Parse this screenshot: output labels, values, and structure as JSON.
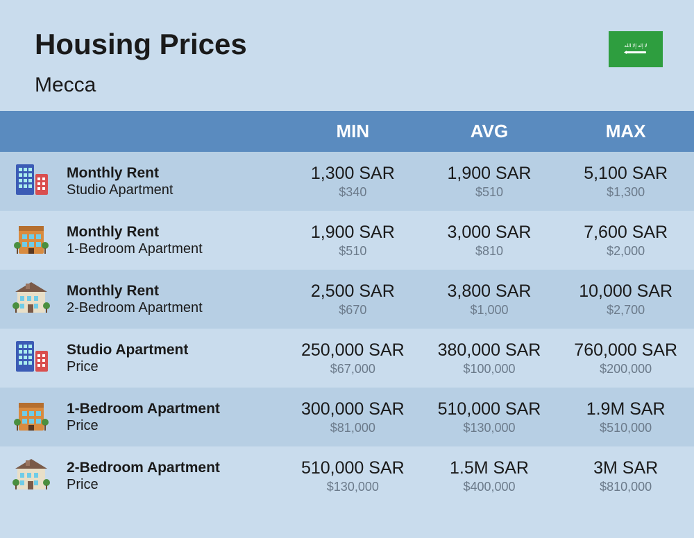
{
  "header": {
    "title": "Housing Prices",
    "subtitle": "Mecca",
    "flag_color": "#2e9e3f"
  },
  "columns": [
    "MIN",
    "AVG",
    "MAX"
  ],
  "rows": [
    {
      "icon": "tower",
      "title": "Monthly Rent",
      "subtitle": "Studio Apartment",
      "min": {
        "main": "1,300 SAR",
        "sub": "$340"
      },
      "avg": {
        "main": "1,900 SAR",
        "sub": "$510"
      },
      "max": {
        "main": "5,100 SAR",
        "sub": "$1,300"
      }
    },
    {
      "icon": "brick",
      "title": "Monthly Rent",
      "subtitle": "1-Bedroom Apartment",
      "min": {
        "main": "1,900 SAR",
        "sub": "$510"
      },
      "avg": {
        "main": "3,000 SAR",
        "sub": "$810"
      },
      "max": {
        "main": "7,600 SAR",
        "sub": "$2,000"
      }
    },
    {
      "icon": "house",
      "title": "Monthly Rent",
      "subtitle": "2-Bedroom Apartment",
      "min": {
        "main": "2,500 SAR",
        "sub": "$670"
      },
      "avg": {
        "main": "3,800 SAR",
        "sub": "$1,000"
      },
      "max": {
        "main": "10,000 SAR",
        "sub": "$2,700"
      }
    },
    {
      "icon": "tower",
      "title": "Studio Apartment",
      "subtitle": "Price",
      "min": {
        "main": "250,000 SAR",
        "sub": "$67,000"
      },
      "avg": {
        "main": "380,000 SAR",
        "sub": "$100,000"
      },
      "max": {
        "main": "760,000 SAR",
        "sub": "$200,000"
      }
    },
    {
      "icon": "brick",
      "title": "1-Bedroom Apartment",
      "subtitle": "Price",
      "min": {
        "main": "300,000 SAR",
        "sub": "$81,000"
      },
      "avg": {
        "main": "510,000 SAR",
        "sub": "$130,000"
      },
      "max": {
        "main": "1.9M SAR",
        "sub": "$510,000"
      }
    },
    {
      "icon": "house",
      "title": "2-Bedroom Apartment",
      "subtitle": "Price",
      "min": {
        "main": "510,000 SAR",
        "sub": "$130,000"
      },
      "avg": {
        "main": "1.5M SAR",
        "sub": "$400,000"
      },
      "max": {
        "main": "3M SAR",
        "sub": "$810,000"
      }
    }
  ],
  "style": {
    "bg": "#c9dced",
    "header_bg": "#5a8bbf",
    "row_a": "#b7cfe4",
    "row_b": "#c9dced",
    "text": "#1a1a1a",
    "subtext": "#6b7a8a"
  }
}
